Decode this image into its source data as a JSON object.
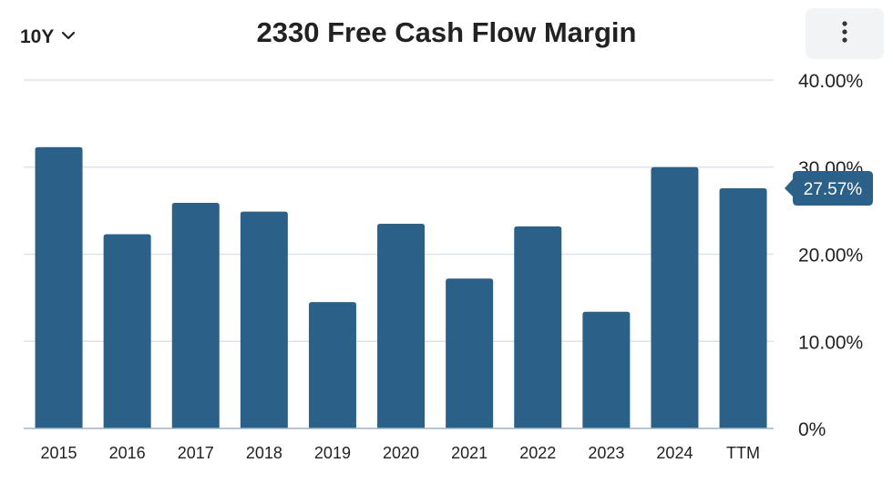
{
  "toolbar": {
    "range_label": "10Y",
    "range_icon": "chevron-down-icon",
    "menu_icon": "more-vertical-icon"
  },
  "colors": {
    "bar": "#2b6088",
    "grid": "#dde3e8",
    "axis": "#9fb3c4",
    "callout": "#2b6088"
  },
  "chart_data": {
    "type": "bar",
    "title": "2330 Free Cash Flow Margin",
    "xlabel": "",
    "ylabel": "",
    "categories": [
      "2015",
      "2016",
      "2017",
      "2018",
      "2019",
      "2020",
      "2021",
      "2022",
      "2023",
      "2024",
      "TTM"
    ],
    "values": [
      32.3,
      22.3,
      25.9,
      24.9,
      14.5,
      23.5,
      17.2,
      23.2,
      13.4,
      30.0,
      27.57
    ],
    "ylim": [
      0,
      40
    ],
    "yticks": [
      "0%",
      "10.00%",
      "20.00%",
      "30.00%",
      "40.00%"
    ],
    "grid": true,
    "y_axis_position": "right",
    "callout": {
      "category": "TTM",
      "label": "27.57%"
    }
  }
}
